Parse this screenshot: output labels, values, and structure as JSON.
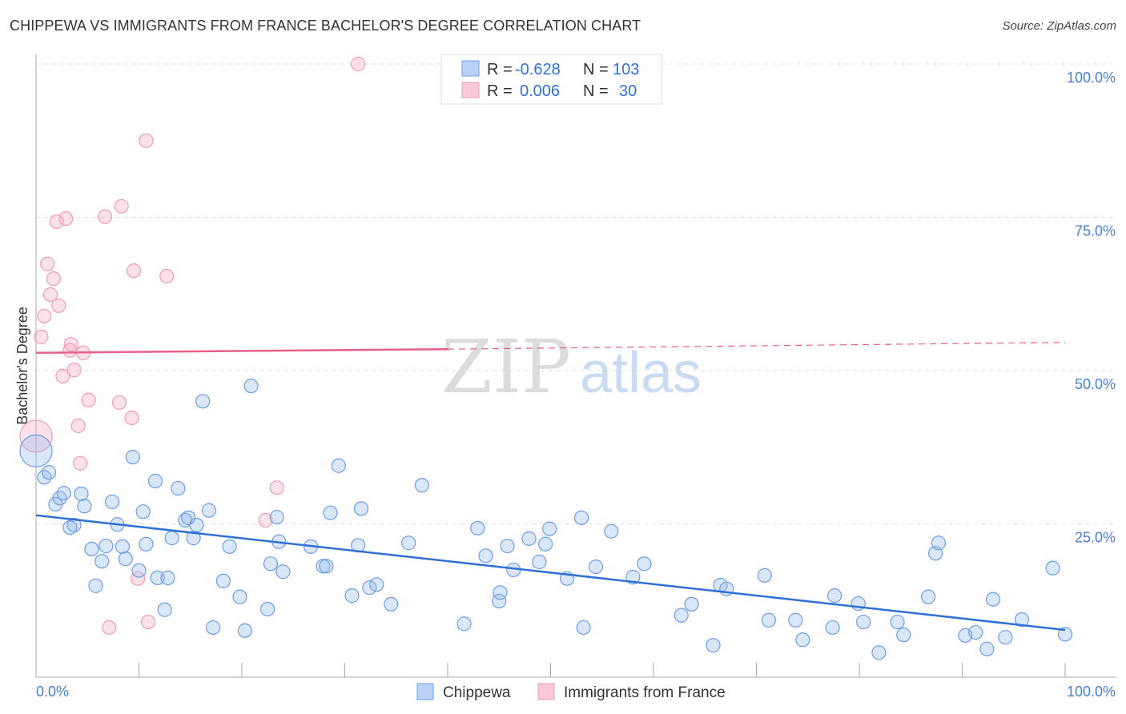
{
  "header": {
    "title": "CHIPPEWA VS IMMIGRANTS FROM FRANCE BACHELOR'S DEGREE CORRELATION CHART",
    "source": "Source: ZipAtlas.com"
  },
  "watermark": {
    "zip": "ZIP",
    "atlas": "atlas"
  },
  "chart_data": {
    "type": "scatter",
    "title": "CHIPPEWA VS IMMIGRANTS FROM FRANCE BACHELOR'S DEGREE CORRELATION CHART",
    "xlabel": "",
    "ylabel": "Bachelor's Degree",
    "xlim": [
      0,
      100
    ],
    "ylim": [
      0,
      100
    ],
    "x_tick_labels": [
      "0.0%",
      "100.0%"
    ],
    "y_ticks": [
      {
        "value": 100,
        "label": "100.0%"
      },
      {
        "value": 75,
        "label": "75.0%"
      },
      {
        "value": 50,
        "label": "50.0%"
      },
      {
        "value": 25,
        "label": "25.0%"
      }
    ],
    "grid": true,
    "legend_placement": "top-center",
    "stats": [
      {
        "series": "Chippewa",
        "r_label": "R =",
        "r": "-0.628",
        "n_label": "N =",
        "n": "103"
      },
      {
        "series": "Immigrants from France",
        "r_label": "R =",
        "r": "0.006",
        "n_label": "N =",
        "n": "30"
      }
    ],
    "series": [
      {
        "name": "Chippewa",
        "color": "#6b9de8",
        "line_color": "#2f6fd6",
        "trend": {
          "x": [
            0,
            100
          ],
          "y": [
            26.4,
            7.7
          ]
        },
        "points": [
          [
            0,
            36.9
          ],
          [
            0.8,
            32.6
          ],
          [
            1.25,
            33.4
          ],
          [
            1.9,
            28.2
          ],
          [
            2.3,
            29.2
          ],
          [
            2.7,
            30.0
          ],
          [
            4.4,
            29.9
          ],
          [
            4.7,
            27.9
          ],
          [
            3.7,
            24.8
          ],
          [
            3.3,
            24.4
          ],
          [
            7.4,
            28.6
          ],
          [
            7.9,
            24.9
          ],
          [
            5.4,
            20.9
          ],
          [
            6.8,
            21.4
          ],
          [
            8.4,
            21.3
          ],
          [
            6.4,
            18.9
          ],
          [
            8.7,
            19.3
          ],
          [
            5.8,
            14.9
          ],
          [
            10.0,
            17.4
          ],
          [
            9.4,
            35.9
          ],
          [
            10.4,
            27.0
          ],
          [
            10.7,
            21.7
          ],
          [
            11.6,
            32.0
          ],
          [
            11.8,
            16.2
          ],
          [
            12.8,
            16.2
          ],
          [
            12.5,
            11.0
          ],
          [
            13.2,
            22.7
          ],
          [
            13.8,
            30.8
          ],
          [
            14.5,
            25.6
          ],
          [
            14.8,
            26.0
          ],
          [
            15.3,
            22.7
          ],
          [
            15.6,
            24.8
          ],
          [
            16.2,
            45.0
          ],
          [
            16.8,
            27.2
          ],
          [
            17.2,
            8.1
          ],
          [
            18.2,
            15.7
          ],
          [
            18.8,
            21.3
          ],
          [
            19.8,
            13.1
          ],
          [
            20.3,
            7.6
          ],
          [
            20.9,
            47.5
          ],
          [
            22.5,
            11.1
          ],
          [
            22.8,
            18.5
          ],
          [
            23.4,
            26.1
          ],
          [
            23.6,
            22.1
          ],
          [
            24.0,
            17.2
          ],
          [
            26.7,
            21.3
          ],
          [
            27.9,
            18.1
          ],
          [
            28.2,
            18.1
          ],
          [
            28.6,
            26.8
          ],
          [
            29.4,
            34.5
          ],
          [
            30.7,
            13.3
          ],
          [
            31.3,
            21.5
          ],
          [
            31.6,
            27.5
          ],
          [
            32.4,
            14.6
          ],
          [
            33.1,
            15.1
          ],
          [
            34.5,
            11.9
          ],
          [
            36.2,
            21.9
          ],
          [
            37.5,
            31.3
          ],
          [
            41.6,
            8.7
          ],
          [
            42.9,
            24.3
          ],
          [
            43.7,
            19.8
          ],
          [
            45.0,
            12.4
          ],
          [
            45.1,
            13.8
          ],
          [
            45.8,
            21.4
          ],
          [
            46.4,
            17.5
          ],
          [
            47.9,
            22.6
          ],
          [
            48.9,
            18.8
          ],
          [
            49.5,
            21.7
          ],
          [
            49.9,
            24.2
          ],
          [
            51.6,
            16.1
          ],
          [
            53.0,
            26.0
          ],
          [
            53.2,
            8.1
          ],
          [
            54.4,
            18.0
          ],
          [
            55.9,
            23.8
          ],
          [
            58.0,
            16.3
          ],
          [
            59.1,
            18.5
          ],
          [
            62.7,
            10.1
          ],
          [
            63.7,
            11.9
          ],
          [
            65.8,
            5.2
          ],
          [
            66.5,
            15.0
          ],
          [
            67.1,
            14.4
          ],
          [
            70.8,
            16.6
          ],
          [
            71.2,
            9.3
          ],
          [
            73.8,
            9.3
          ],
          [
            74.5,
            6.1
          ],
          [
            77.4,
            8.1
          ],
          [
            77.6,
            13.3
          ],
          [
            79.9,
            12.0
          ],
          [
            80.4,
            9.0
          ],
          [
            81.9,
            4.0
          ],
          [
            83.7,
            9.0
          ],
          [
            84.3,
            6.9
          ],
          [
            86.7,
            13.1
          ],
          [
            87.4,
            20.2
          ],
          [
            87.7,
            21.9
          ],
          [
            90.3,
            6.8
          ],
          [
            91.3,
            7.3
          ],
          [
            92.4,
            4.6
          ],
          [
            93.0,
            12.7
          ],
          [
            94.2,
            6.5
          ],
          [
            95.8,
            9.4
          ],
          [
            98.8,
            17.8
          ],
          [
            100,
            7.0
          ]
        ]
      },
      {
        "name": "Immigrants from France",
        "color": "#f29bb5",
        "line_color": "#e8608a",
        "trend": {
          "x": [
            0,
            40,
            100
          ],
          "y": [
            52.9,
            53.5,
            54.6
          ]
        },
        "points": [
          [
            31.3,
            100
          ],
          [
            10.7,
            87.5
          ],
          [
            8.3,
            76.8
          ],
          [
            6.7,
            75.1
          ],
          [
            2.9,
            74.8
          ],
          [
            2.0,
            74.3
          ],
          [
            1.1,
            67.4
          ],
          [
            9.5,
            66.3
          ],
          [
            12.7,
            65.4
          ],
          [
            1.7,
            65.0
          ],
          [
            1.4,
            62.4
          ],
          [
            2.2,
            60.6
          ],
          [
            0.8,
            58.9
          ],
          [
            0.5,
            55.5
          ],
          [
            3.4,
            54.3
          ],
          [
            3.3,
            53.3
          ],
          [
            4.6,
            52.9
          ],
          [
            3.7,
            50.1
          ],
          [
            2.6,
            49.1
          ],
          [
            5.1,
            45.2
          ],
          [
            8.1,
            44.8
          ],
          [
            9.3,
            42.3
          ],
          [
            4.1,
            41.0
          ],
          [
            0,
            39.3
          ],
          [
            4.3,
            34.9
          ],
          [
            23.4,
            30.9
          ],
          [
            22.3,
            25.6
          ],
          [
            9.9,
            16.1
          ],
          [
            10.9,
            9.0
          ],
          [
            7.1,
            8.1
          ]
        ]
      }
    ]
  }
}
